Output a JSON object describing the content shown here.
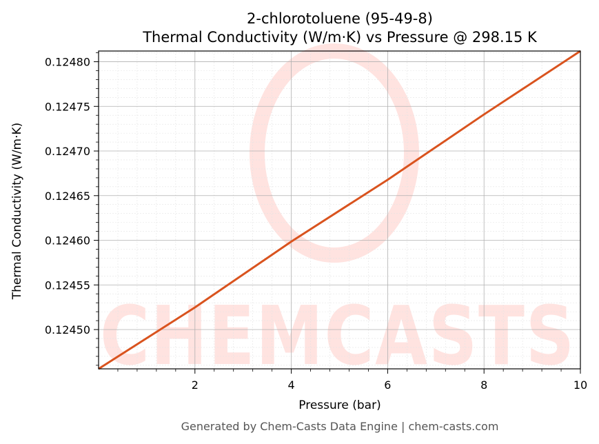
{
  "chart_data": {
    "type": "line",
    "title": "2-chlorotoluene (95-49-8)",
    "subtitle": "Thermal Conductivity (W/m·K) vs Pressure @ 298.15 K",
    "xlabel": "Pressure (bar)",
    "ylabel": "Thermal Conductivity (W/m·K)",
    "xlim": [
      0.0,
      10.0
    ],
    "ylim": [
      0.124456,
      0.124812
    ],
    "x_ticks": [
      2,
      4,
      6,
      8,
      10
    ],
    "x_tick_labels": [
      "2",
      "4",
      "6",
      "8",
      "10"
    ],
    "y_ticks": [
      0.1245,
      0.12455,
      0.1246,
      0.12465,
      0.1247,
      0.12475,
      0.1248
    ],
    "y_tick_labels": [
      "0.12450",
      "0.12455",
      "0.12460",
      "0.12465",
      "0.12470",
      "0.12475",
      "0.12480"
    ],
    "grid": true,
    "minor_grid": true,
    "series": [
      {
        "color": "#d9531e",
        "x": [
          0.0,
          2.0,
          4.0,
          6.0,
          8.0,
          10.0
        ],
        "y": [
          0.124456,
          0.1245248,
          0.1245986,
          0.1246678,
          0.124741,
          0.124812
        ]
      }
    ]
  },
  "watermark": {
    "text": "CHEMCASTS",
    "color": "#ffe3e0"
  },
  "footer": "Generated by Chem-Casts Data Engine | chem-casts.com"
}
